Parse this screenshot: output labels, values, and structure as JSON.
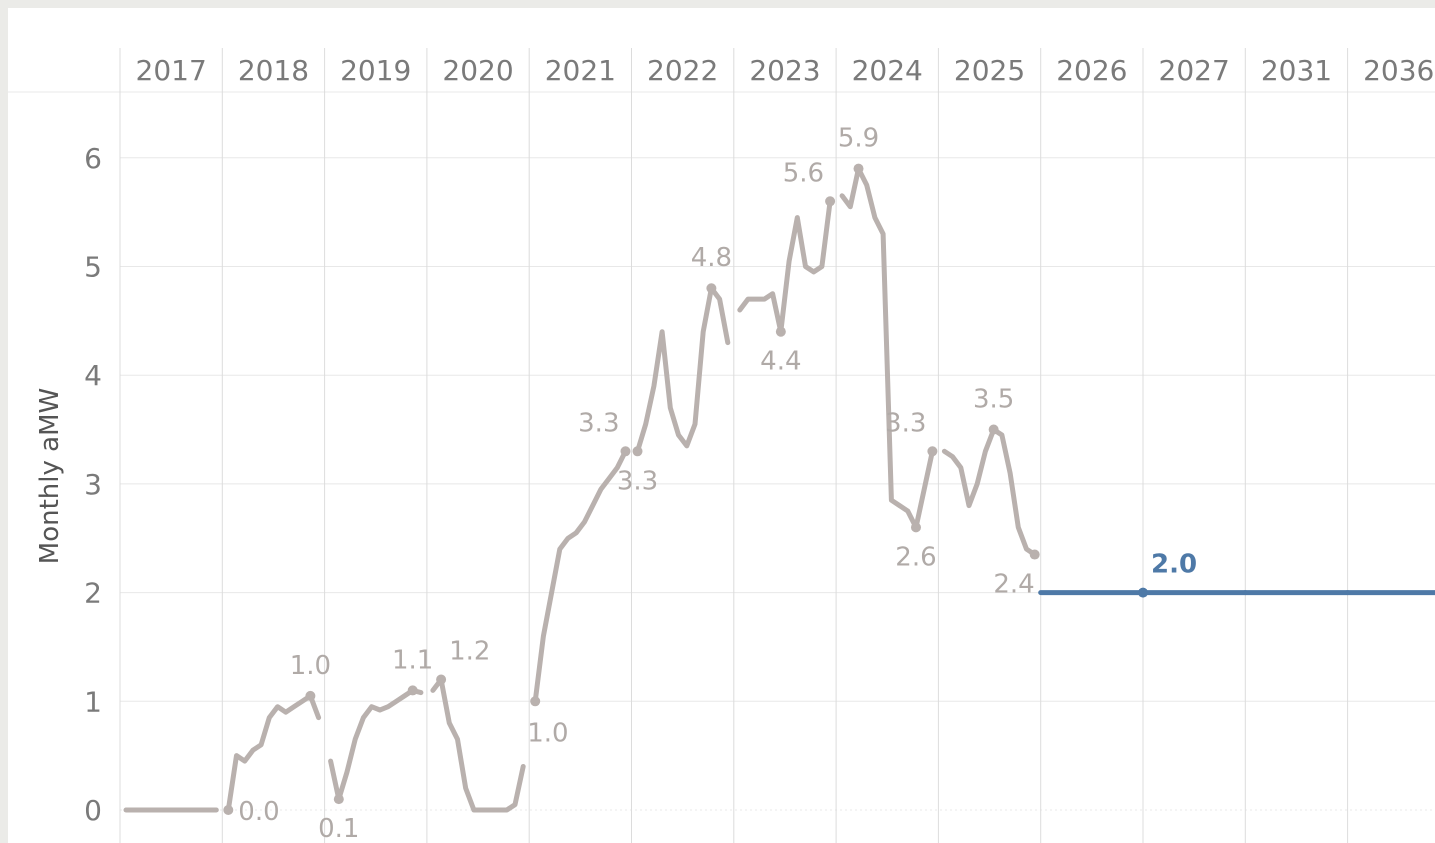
{
  "colors": {
    "history": "#b9b1ae",
    "forecast": "#4e79a7",
    "history_label": "#b0aaa7",
    "forecast_label": "#4e79a7",
    "grid": "#e8e8e8",
    "divider": "#dcdcdc"
  },
  "chart_data": {
    "type": "line",
    "ylabel": "Monthly aMW",
    "ylim": [
      -0.2,
      6.5
    ],
    "yticks": [
      0,
      1,
      2,
      3,
      4,
      5,
      6
    ],
    "grid": true,
    "columns": [
      "2017",
      "2018",
      "2019",
      "2020",
      "2021",
      "2022",
      "2023",
      "2024",
      "2025",
      "2026",
      "2027",
      "2031",
      "2036"
    ],
    "series": [
      {
        "style": "history",
        "segments": [
          {
            "column": "2017",
            "values": [
              0,
              0,
              0,
              0,
              0,
              0,
              0,
              0,
              0,
              0,
              0,
              0
            ]
          },
          {
            "column": "2018",
            "values": [
              0.0,
              0.5,
              0.45,
              0.55,
              0.6,
              0.85,
              0.95,
              0.9,
              0.95,
              1.0,
              1.05,
              0.85
            ]
          },
          {
            "column": "2019",
            "values": [
              0.45,
              0.1,
              0.35,
              0.65,
              0.85,
              0.95,
              0.92,
              0.95,
              1.0,
              1.05,
              1.1,
              1.08
            ]
          },
          {
            "column": "2020",
            "values": [
              1.1,
              1.2,
              0.8,
              0.65,
              0.2,
              0.0,
              0.0,
              0.0,
              0.0,
              0.0,
              0.05,
              0.4
            ]
          },
          {
            "column": "2021",
            "values": [
              1.0,
              1.6,
              2.0,
              2.4,
              2.5,
              2.55,
              2.65,
              2.8,
              2.95,
              3.05,
              3.15,
              3.3
            ]
          },
          {
            "column": "2022",
            "values": [
              3.3,
              3.55,
              3.9,
              4.4,
              3.7,
              3.45,
              3.35,
              3.55,
              4.4,
              4.8,
              4.7,
              4.3
            ]
          },
          {
            "column": "2023",
            "values": [
              4.6,
              4.7,
              4.7,
              4.7,
              4.75,
              4.4,
              5.05,
              5.45,
              5.0,
              4.95,
              5.0,
              5.6
            ]
          },
          {
            "column": "2024",
            "values": [
              5.65,
              5.55,
              5.9,
              5.75,
              5.45,
              5.3,
              2.85,
              2.8,
              2.75,
              2.6,
              2.95,
              3.3
            ]
          },
          {
            "column": "2025",
            "values": [
              3.3,
              3.25,
              3.15,
              2.8,
              3.0,
              3.3,
              3.5,
              3.45,
              3.1,
              2.6,
              2.4,
              2.35
            ]
          }
        ]
      },
      {
        "style": "forecast",
        "segments": [
          {
            "column": "2026",
            "values": [
              2.0,
              2.0
            ]
          },
          {
            "column": "2027",
            "values": [
              2.0,
              2.0
            ]
          },
          {
            "column": "2031",
            "values": [
              2.0,
              2.0
            ]
          },
          {
            "column": "2036",
            "values": [
              2.0,
              2.0
            ]
          }
        ]
      }
    ],
    "data_labels": [
      {
        "text": "0.0",
        "column": "2018",
        "index": 0,
        "value": 0.0,
        "style": "history",
        "pos": "right"
      },
      {
        "text": "1.0",
        "column": "2018",
        "index": 10,
        "value": 1.05,
        "style": "history",
        "pos": "above"
      },
      {
        "text": "0.1",
        "column": "2019",
        "index": 1,
        "value": 0.1,
        "style": "history",
        "pos": "below"
      },
      {
        "text": "1.1",
        "column": "2019",
        "index": 10,
        "value": 1.1,
        "style": "history",
        "pos": "above"
      },
      {
        "text": "1.2",
        "column": "2020",
        "index": 1,
        "value": 1.2,
        "style": "history",
        "pos": "above-right"
      },
      {
        "text": "1.0",
        "column": "2021",
        "index": 0,
        "value": 1.0,
        "style": "history",
        "pos": "below-right"
      },
      {
        "text": "3.3",
        "column": "2021",
        "index": 11,
        "value": 3.3,
        "style": "history",
        "pos": "above-left"
      },
      {
        "text": "3.3",
        "column": "2022",
        "index": 0,
        "value": 3.3,
        "style": "history",
        "pos": "below"
      },
      {
        "text": "4.8",
        "column": "2022",
        "index": 9,
        "value": 4.8,
        "style": "history",
        "pos": "above"
      },
      {
        "text": "4.4",
        "column": "2023",
        "index": 5,
        "value": 4.4,
        "style": "history",
        "pos": "below"
      },
      {
        "text": "5.6",
        "column": "2023",
        "index": 11,
        "value": 5.6,
        "style": "history",
        "pos": "above-left"
      },
      {
        "text": "5.9",
        "column": "2024",
        "index": 2,
        "value": 5.9,
        "style": "history",
        "pos": "above"
      },
      {
        "text": "3.3",
        "column": "2024",
        "index": 11,
        "value": 3.3,
        "style": "history",
        "pos": "above-left"
      },
      {
        "text": "2.6",
        "column": "2024",
        "index": 9,
        "value": 2.6,
        "style": "history",
        "pos": "below"
      },
      {
        "text": "3.5",
        "column": "2025",
        "index": 6,
        "value": 3.5,
        "style": "history",
        "pos": "above"
      },
      {
        "text": "2.4",
        "column": "2025",
        "index": 11,
        "value": 2.35,
        "style": "history",
        "pos": "below-left"
      },
      {
        "text": "2.0",
        "column": "2027",
        "index": 0,
        "value": 2.0,
        "style": "forecast",
        "pos": "above-right"
      }
    ]
  }
}
